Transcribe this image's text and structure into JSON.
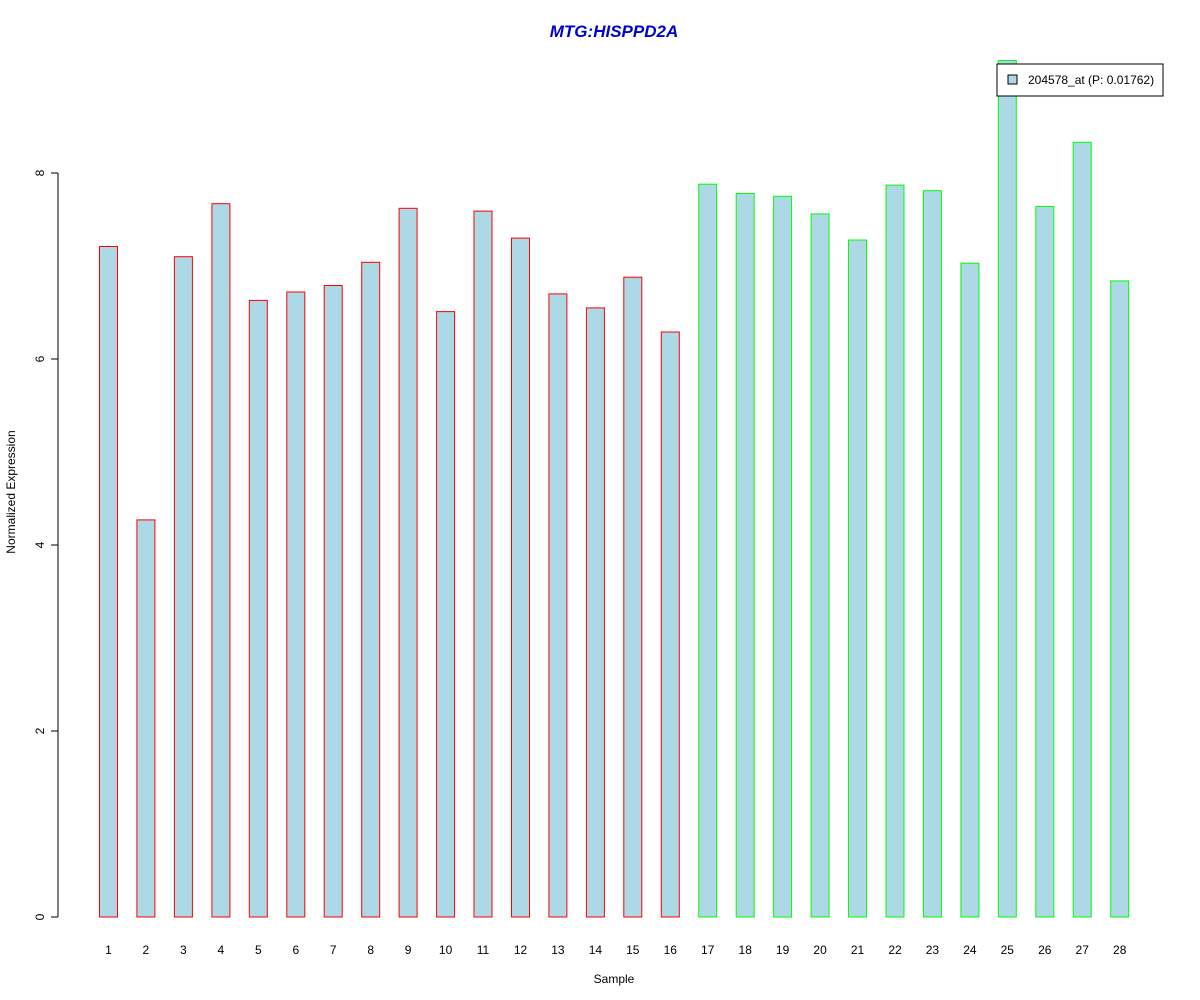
{
  "chart_data": {
    "type": "bar",
    "title": "MTG:HISPPD2A",
    "xlabel": "Sample",
    "ylabel": "Normalized Expression",
    "categories": [
      "1",
      "2",
      "3",
      "4",
      "5",
      "6",
      "7",
      "8",
      "9",
      "10",
      "11",
      "12",
      "13",
      "14",
      "15",
      "16",
      "17",
      "18",
      "19",
      "20",
      "21",
      "22",
      "23",
      "24",
      "25",
      "26",
      "27",
      "28"
    ],
    "series": [
      {
        "name": "204578_at (P: 0.01762)",
        "values": [
          7.21,
          4.27,
          7.1,
          7.67,
          6.63,
          6.72,
          6.79,
          7.04,
          7.62,
          6.51,
          7.59,
          7.3,
          6.7,
          6.55,
          6.88,
          6.29,
          7.88,
          7.78,
          7.75,
          7.56,
          7.28,
          7.87,
          7.81,
          7.03,
          9.21,
          7.64,
          8.33,
          6.84
        ]
      }
    ],
    "group_sizes": [
      16,
      12
    ],
    "ylim": [
      0,
      9.21
    ],
    "yticks": [
      0,
      2,
      4,
      6,
      8
    ],
    "legend_position": "top-right",
    "grid": false,
    "colors": {
      "title": "#0000CC",
      "bar_fill": "#ADD8E6",
      "group_1_border": "#FF0000",
      "group_2_border": "#00FF00",
      "axis": "#000000"
    }
  }
}
